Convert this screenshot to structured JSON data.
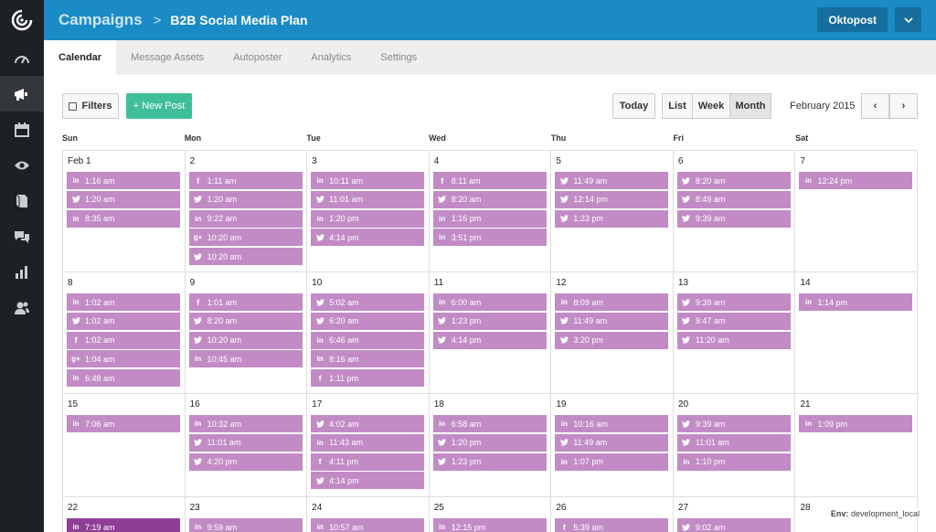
{
  "sidebar": {
    "items": [
      {
        "icon": "dashboard-icon",
        "active": false
      },
      {
        "icon": "megaphone-icon",
        "active": true
      },
      {
        "icon": "calendar-icon",
        "active": false
      },
      {
        "icon": "eye-icon",
        "active": false
      },
      {
        "icon": "book-icon",
        "active": false
      },
      {
        "icon": "chat-icon",
        "active": false
      },
      {
        "icon": "bar-chart-icon",
        "active": false
      },
      {
        "icon": "users-icon",
        "active": false
      }
    ]
  },
  "header": {
    "breadcrumb_root": "Campaigns",
    "breadcrumb_sep": ">",
    "breadcrumb_current": "B2B Social Media Plan",
    "org_name": "Oktopost",
    "color": "#1a8bc5"
  },
  "tabs": [
    {
      "label": "Calendar",
      "active": true
    },
    {
      "label": "Message Assets",
      "active": false
    },
    {
      "label": "Autoposter",
      "active": false
    },
    {
      "label": "Analytics",
      "active": false
    },
    {
      "label": "Settings",
      "active": false
    }
  ],
  "toolbar": {
    "filters_label": "Filters",
    "new_post_label": "+ New Post",
    "today_label": "Today",
    "views": [
      {
        "label": "List",
        "active": false
      },
      {
        "label": "Week",
        "active": false
      },
      {
        "label": "Month",
        "active": true
      }
    ],
    "month_label": "February 2015",
    "prev_label": "‹",
    "next_label": "›"
  },
  "calendar": {
    "days_of_week": [
      "Sun",
      "Mon",
      "Tue",
      "Wed",
      "Thu",
      "Fri",
      "Sat"
    ],
    "post_color": "#c28bc6",
    "weeks": [
      [
        {
          "day": "Feb 1",
          "posts": [
            {
              "net": "linkedin",
              "time": "1:16 am"
            },
            {
              "net": "twitter",
              "time": "1:20 am"
            },
            {
              "net": "linkedin",
              "time": "8:35 am"
            }
          ]
        },
        {
          "day": "2",
          "posts": [
            {
              "net": "facebook",
              "time": "1:11 am"
            },
            {
              "net": "twitter",
              "time": "1:20 am"
            },
            {
              "net": "linkedin",
              "time": "9:22 am"
            },
            {
              "net": "googleplus",
              "time": "10:20 am"
            },
            {
              "net": "twitter",
              "time": "10:20 am"
            }
          ]
        },
        {
          "day": "3",
          "posts": [
            {
              "net": "linkedin",
              "time": "10:11 am"
            },
            {
              "net": "twitter",
              "time": "11:01 am"
            },
            {
              "net": "linkedin",
              "time": "1:20 pm"
            },
            {
              "net": "twitter",
              "time": "4:14 pm"
            }
          ]
        },
        {
          "day": "4",
          "posts": [
            {
              "net": "facebook",
              "time": "8:11 am"
            },
            {
              "net": "twitter",
              "time": "8:20 am"
            },
            {
              "net": "linkedin",
              "time": "1:16 pm"
            },
            {
              "net": "linkedin",
              "time": "3:51 pm"
            }
          ]
        },
        {
          "day": "5",
          "posts": [
            {
              "net": "twitter",
              "time": "11:49 am"
            },
            {
              "net": "twitter",
              "time": "12:14 pm"
            },
            {
              "net": "twitter",
              "time": "1:23 pm"
            }
          ]
        },
        {
          "day": "6",
          "posts": [
            {
              "net": "twitter",
              "time": "8:20 am"
            },
            {
              "net": "twitter",
              "time": "8:49 am"
            },
            {
              "net": "twitter",
              "time": "9:39 am"
            }
          ]
        },
        {
          "day": "7",
          "posts": [
            {
              "net": "linkedin",
              "time": "12:24 pm"
            }
          ]
        }
      ],
      [
        {
          "day": "8",
          "posts": [
            {
              "net": "linkedin",
              "time": "1:02 am"
            },
            {
              "net": "twitter",
              "time": "1:02 am"
            },
            {
              "net": "facebook",
              "time": "1:02 am"
            },
            {
              "net": "googleplus",
              "time": "1:04 am"
            },
            {
              "net": "linkedin",
              "time": "6:48 am"
            }
          ]
        },
        {
          "day": "9",
          "posts": [
            {
              "net": "facebook",
              "time": "1:01 am"
            },
            {
              "net": "twitter",
              "time": "8:20 am"
            },
            {
              "net": "twitter",
              "time": "10:20 am"
            },
            {
              "net": "linkedin",
              "time": "10:45 am"
            }
          ]
        },
        {
          "day": "10",
          "posts": [
            {
              "net": "twitter",
              "time": "5:02 am"
            },
            {
              "net": "twitter",
              "time": "6:20 am"
            },
            {
              "net": "linkedin",
              "time": "6:46 am"
            },
            {
              "net": "linkedin",
              "time": "8:16 am"
            },
            {
              "net": "facebook",
              "time": "1:11 pm"
            }
          ]
        },
        {
          "day": "11",
          "posts": [
            {
              "net": "linkedin",
              "time": "6:00 am"
            },
            {
              "net": "twitter",
              "time": "1:23 pm"
            },
            {
              "net": "twitter",
              "time": "4:14 pm"
            }
          ]
        },
        {
          "day": "12",
          "posts": [
            {
              "net": "linkedin",
              "time": "8:09 am"
            },
            {
              "net": "twitter",
              "time": "11:49 am"
            },
            {
              "net": "twitter",
              "time": "3:20 pm"
            }
          ]
        },
        {
          "day": "13",
          "posts": [
            {
              "net": "twitter",
              "time": "9:39 am"
            },
            {
              "net": "twitter",
              "time": "9:47 am"
            },
            {
              "net": "twitter",
              "time": "11:20 am"
            }
          ]
        },
        {
          "day": "14",
          "posts": [
            {
              "net": "linkedin",
              "time": "1:14 pm"
            }
          ]
        }
      ],
      [
        {
          "day": "15",
          "posts": [
            {
              "net": "linkedin",
              "time": "7:06 am"
            }
          ]
        },
        {
          "day": "16",
          "posts": [
            {
              "net": "linkedin",
              "time": "10:32 am"
            },
            {
              "net": "twitter",
              "time": "11:01 am"
            },
            {
              "net": "twitter",
              "time": "4:20 pm"
            }
          ]
        },
        {
          "day": "17",
          "posts": [
            {
              "net": "twitter",
              "time": "4:02 am"
            },
            {
              "net": "linkedin",
              "time": "11:43 am"
            },
            {
              "net": "facebook",
              "time": "4:11 pm"
            },
            {
              "net": "twitter",
              "time": "4:14 pm"
            }
          ]
        },
        {
          "day": "18",
          "posts": [
            {
              "net": "linkedin",
              "time": "6:58 am"
            },
            {
              "net": "twitter",
              "time": "1:20 pm"
            },
            {
              "net": "twitter",
              "time": "1:23 pm"
            }
          ]
        },
        {
          "day": "19",
          "posts": [
            {
              "net": "linkedin",
              "time": "10:16 am"
            },
            {
              "net": "twitter",
              "time": "11:49 am"
            },
            {
              "net": "linkedin",
              "time": "1:07 pm"
            }
          ]
        },
        {
          "day": "20",
          "posts": [
            {
              "net": "twitter",
              "time": "9:39 am"
            },
            {
              "net": "twitter",
              "time": "11:01 am"
            },
            {
              "net": "linkedin",
              "time": "1:10 pm"
            }
          ]
        },
        {
          "day": "21",
          "posts": [
            {
              "net": "linkedin",
              "time": "1:09 pm"
            }
          ]
        }
      ],
      [
        {
          "day": "22",
          "posts": [
            {
              "net": "linkedin",
              "time": "7:19 am",
              "highlight": true
            }
          ]
        },
        {
          "day": "23",
          "posts": [
            {
              "net": "linkedin",
              "time": "9:59 am"
            }
          ]
        },
        {
          "day": "24",
          "posts": [
            {
              "net": "linkedin",
              "time": "10:57 am"
            }
          ]
        },
        {
          "day": "25",
          "posts": [
            {
              "net": "linkedin",
              "time": "12:15 pm"
            }
          ]
        },
        {
          "day": "26",
          "posts": [
            {
              "net": "facebook",
              "time": "5:39 am"
            }
          ]
        },
        {
          "day": "27",
          "posts": [
            {
              "net": "twitter",
              "time": "9:02 am"
            }
          ]
        },
        {
          "day": "28",
          "posts": []
        }
      ]
    ]
  },
  "env": {
    "label": "Env:",
    "value": "development_local"
  }
}
